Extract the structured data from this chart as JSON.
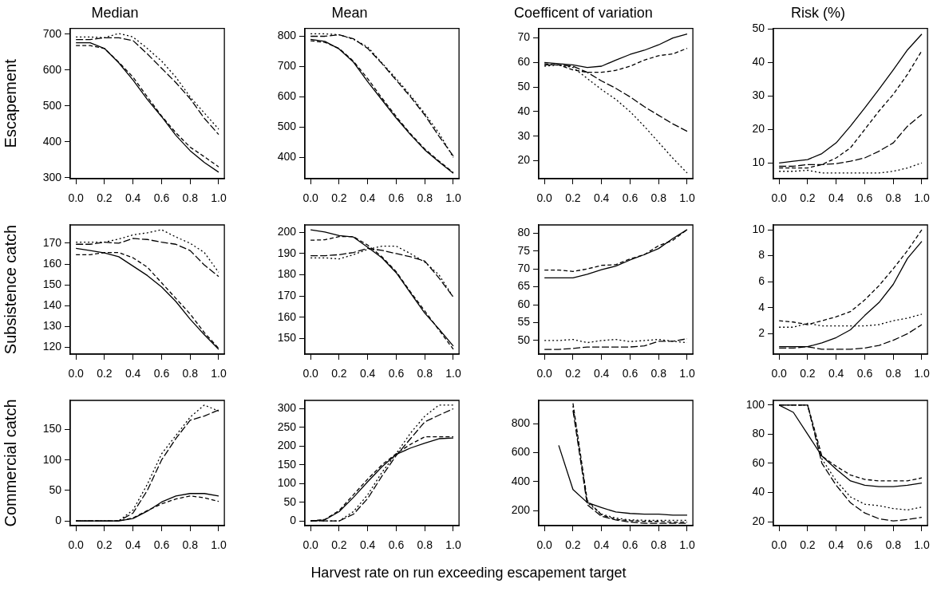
{
  "chart_data": [
    {
      "type": "line",
      "title": "Median",
      "ylabel": "Escapement",
      "x": [
        0,
        0.1,
        0.2,
        0.3,
        0.4,
        0.5,
        0.6,
        0.7,
        0.8,
        0.9,
        1.0
      ],
      "xlim": [
        -0.04,
        1.04
      ],
      "xticks": [
        {
          "value": 0,
          "label": "0.0"
        },
        {
          "value": 0.2,
          "label": "0.2"
        },
        {
          "value": 0.4,
          "label": "0.4"
        },
        {
          "value": 0.6,
          "label": "0.6"
        },
        {
          "value": 0.8,
          "label": "0.8"
        },
        {
          "value": 1,
          "label": "1.0"
        }
      ],
      "ylim": [
        297,
        716
      ],
      "yticks": [
        300,
        400,
        500,
        600,
        700
      ],
      "series": [
        {
          "color": "#000000",
          "line_style": "solid",
          "values": [
            676,
            676,
            660,
            620,
            572,
            518,
            470,
            418,
            375,
            342,
            315
          ]
        },
        {
          "color": "#000000",
          "line_style": "dashed",
          "values": [
            668,
            668,
            660,
            622,
            580,
            525,
            472,
            425,
            385,
            358,
            330
          ]
        },
        {
          "color": "#000000",
          "line_style": "dashed",
          "values": [
            685,
            685,
            690,
            690,
            682,
            645,
            605,
            565,
            520,
            465,
            420
          ]
        },
        {
          "color": "#000000",
          "line_style": "dotted",
          "values": [
            692,
            692,
            690,
            702,
            692,
            660,
            625,
            580,
            525,
            480,
            435
          ]
        }
      ]
    },
    {
      "type": "line",
      "title": "Mean",
      "x": [
        0,
        0.1,
        0.2,
        0.3,
        0.4,
        0.5,
        0.6,
        0.7,
        0.8,
        0.9,
        1.0
      ],
      "xlim": [
        -0.04,
        1.04
      ],
      "xticks": [
        {
          "value": 0,
          "label": "0.0"
        },
        {
          "value": 0.2,
          "label": "0.2"
        },
        {
          "value": 0.4,
          "label": "0.4"
        },
        {
          "value": 0.6,
          "label": "0.6"
        },
        {
          "value": 0.8,
          "label": "0.8"
        },
        {
          "value": 1,
          "label": "1.0"
        }
      ],
      "ylim": [
        330,
        826
      ],
      "yticks": [
        400,
        500,
        600,
        700,
        800
      ],
      "series": [
        {
          "color": "#000000",
          "line_style": "solid",
          "values": [
            790,
            783,
            758,
            715,
            650,
            590,
            530,
            475,
            425,
            385,
            348
          ]
        },
        {
          "color": "#000000",
          "line_style": "dashed",
          "values": [
            785,
            780,
            760,
            718,
            660,
            596,
            535,
            478,
            428,
            388,
            350
          ]
        },
        {
          "color": "#000000",
          "line_style": "dashed",
          "values": [
            800,
            800,
            805,
            792,
            760,
            710,
            655,
            600,
            540,
            470,
            405
          ]
        },
        {
          "color": "#000000",
          "line_style": "dotted",
          "values": [
            808,
            808,
            805,
            790,
            765,
            712,
            660,
            605,
            545,
            480,
            400
          ]
        }
      ]
    },
    {
      "type": "line",
      "title": "Coefficent of variation",
      "x": [
        0,
        0.1,
        0.2,
        0.3,
        0.4,
        0.5,
        0.6,
        0.7,
        0.8,
        0.9,
        1.0
      ],
      "xlim": [
        -0.04,
        1.04
      ],
      "xticks": [
        {
          "value": 0,
          "label": "0.0"
        },
        {
          "value": 0.2,
          "label": "0.2"
        },
        {
          "value": 0.4,
          "label": "0.4"
        },
        {
          "value": 0.6,
          "label": "0.6"
        },
        {
          "value": 0.8,
          "label": "0.8"
        },
        {
          "value": 1,
          "label": "1.0"
        }
      ],
      "ylim": [
        12.7,
        73.9
      ],
      "yticks": [
        20,
        30,
        40,
        50,
        60,
        70
      ],
      "series": [
        {
          "color": "#000000",
          "line_style": "solid",
          "values": [
            60,
            59.5,
            59,
            58,
            58.5,
            61,
            63.3,
            65,
            67.2,
            70,
            71.6
          ]
        },
        {
          "color": "#000000",
          "line_style": "dashed",
          "values": [
            59.5,
            59,
            57,
            56,
            56,
            56.8,
            58.5,
            61,
            62.8,
            63.5,
            65.8
          ]
        },
        {
          "color": "#000000",
          "line_style": "dashed",
          "values": [
            59,
            59,
            58.5,
            56,
            52.5,
            49.5,
            46,
            42,
            38.5,
            35,
            32
          ]
        },
        {
          "color": "#000000",
          "line_style": "dotted",
          "values": [
            58.5,
            59,
            58,
            53.5,
            49,
            45,
            40,
            34,
            27.5,
            21,
            15
          ]
        }
      ]
    },
    {
      "type": "line",
      "title": "Risk (%)",
      "x": [
        0,
        0.1,
        0.2,
        0.3,
        0.4,
        0.5,
        0.6,
        0.7,
        0.8,
        0.9,
        1.0
      ],
      "xlim": [
        -0.04,
        1.04
      ],
      "xticks": [
        {
          "value": 0,
          "label": "0.0"
        },
        {
          "value": 0.2,
          "label": "0.2"
        },
        {
          "value": 0.4,
          "label": "0.4"
        },
        {
          "value": 0.6,
          "label": "0.6"
        },
        {
          "value": 0.8,
          "label": "0.8"
        },
        {
          "value": 1,
          "label": "1.0"
        }
      ],
      "ylim": [
        5.3,
        50.2
      ],
      "yticks": [
        10,
        20,
        30,
        40,
        50
      ],
      "series": [
        {
          "color": "#000000",
          "line_style": "solid",
          "values": [
            10,
            10.5,
            11,
            12.8,
            16,
            21,
            26.4,
            32,
            37.8,
            43.8,
            48.5
          ]
        },
        {
          "color": "#000000",
          "line_style": "dashed",
          "values": [
            8.5,
            8.5,
            8.5,
            9.5,
            11.5,
            14.5,
            20,
            25.5,
            30.5,
            36.5,
            43.5
          ]
        },
        {
          "color": "#000000",
          "line_style": "dashed",
          "values": [
            9,
            9,
            9.5,
            9.5,
            9.8,
            10.5,
            11.5,
            13.5,
            16,
            21,
            24.5
          ]
        },
        {
          "color": "#000000",
          "line_style": "dotted",
          "values": [
            7.5,
            7.5,
            7.8,
            7,
            7,
            7,
            7,
            7,
            7.5,
            8.5,
            10
          ]
        }
      ]
    },
    {
      "type": "line",
      "ylabel": "Subsistence catch",
      "x": [
        0,
        0.1,
        0.2,
        0.3,
        0.4,
        0.5,
        0.6,
        0.7,
        0.8,
        0.9,
        1.0
      ],
      "xlim": [
        -0.04,
        1.04
      ],
      "xticks": [
        {
          "value": 0,
          "label": "0.0"
        },
        {
          "value": 0.2,
          "label": "0.2"
        },
        {
          "value": 0.4,
          "label": "0.4"
        },
        {
          "value": 0.6,
          "label": "0.6"
        },
        {
          "value": 0.8,
          "label": "0.8"
        },
        {
          "value": 1,
          "label": "1.0"
        }
      ],
      "ylim": [
        116.7,
        178.8
      ],
      "yticks": [
        120,
        130,
        140,
        150,
        160,
        170
      ],
      "series": [
        {
          "color": "#000000",
          "line_style": "solid",
          "values": [
            167.5,
            166.5,
            165.3,
            163.5,
            159,
            154.5,
            149,
            142,
            133.5,
            126,
            119
          ]
        },
        {
          "color": "#000000",
          "line_style": "dashed",
          "values": [
            164.5,
            164.5,
            165.5,
            165.5,
            163,
            158.5,
            151,
            143.5,
            136,
            127,
            119.5
          ]
        },
        {
          "color": "#000000",
          "line_style": "dashed",
          "values": [
            169.5,
            169.5,
            170.5,
            170,
            172.3,
            171.8,
            170.5,
            169.5,
            166.5,
            159.5,
            154
          ]
        },
        {
          "color": "#000000",
          "line_style": "dotted",
          "values": [
            170.5,
            170.5,
            170.5,
            172,
            174,
            175,
            176.5,
            173,
            170,
            165.5,
            156
          ]
        }
      ]
    },
    {
      "type": "line",
      "x": [
        0,
        0.1,
        0.2,
        0.3,
        0.4,
        0.5,
        0.6,
        0.7,
        0.8,
        0.9,
        1.0
      ],
      "xlim": [
        -0.04,
        1.04
      ],
      "xticks": [
        {
          "value": 0,
          "label": "0.0"
        },
        {
          "value": 0.2,
          "label": "0.2"
        },
        {
          "value": 0.4,
          "label": "0.4"
        },
        {
          "value": 0.6,
          "label": "0.6"
        },
        {
          "value": 0.8,
          "label": "0.8"
        },
        {
          "value": 1,
          "label": "1.0"
        }
      ],
      "ylim": [
        142.7,
        203.5
      ],
      "yticks": [
        150,
        160,
        170,
        180,
        190,
        200
      ],
      "series": [
        {
          "color": "#000000",
          "line_style": "solid",
          "values": [
            201.2,
            200.2,
            198.5,
            197.8,
            193,
            188,
            181,
            171.5,
            162,
            154.5,
            146.5
          ]
        },
        {
          "color": "#000000",
          "line_style": "dashed",
          "values": [
            196.3,
            196.5,
            198,
            198,
            194,
            188.5,
            181.5,
            172,
            163,
            154,
            145
          ]
        },
        {
          "color": "#000000",
          "line_style": "dashed",
          "values": [
            189,
            189,
            189.5,
            190.5,
            192.5,
            191.5,
            190,
            188.5,
            186.5,
            178.5,
            169.5
          ]
        },
        {
          "color": "#000000",
          "line_style": "dotted",
          "values": [
            188,
            188,
            187.5,
            189.5,
            192,
            193.5,
            193.5,
            190,
            186,
            180,
            169.5
          ]
        }
      ]
    },
    {
      "type": "line",
      "x": [
        0,
        0.1,
        0.2,
        0.3,
        0.4,
        0.5,
        0.6,
        0.7,
        0.8,
        0.9,
        1.0
      ],
      "xlim": [
        -0.04,
        1.04
      ],
      "xticks": [
        {
          "value": 0,
          "label": "0.0"
        },
        {
          "value": 0.2,
          "label": "0.2"
        },
        {
          "value": 0.4,
          "label": "0.4"
        },
        {
          "value": 0.6,
          "label": "0.6"
        },
        {
          "value": 0.8,
          "label": "0.8"
        },
        {
          "value": 1,
          "label": "1.0"
        }
      ],
      "ylim": [
        46.2,
        82.3
      ],
      "yticks": [
        50,
        55,
        60,
        65,
        70,
        75,
        80
      ],
      "series": [
        {
          "color": "#000000",
          "line_style": "solid",
          "values": [
            67.5,
            67.5,
            67.5,
            68.5,
            69.8,
            70.8,
            72.5,
            74,
            75.7,
            78.5,
            81
          ]
        },
        {
          "color": "#000000",
          "line_style": "dashed",
          "values": [
            69.7,
            69.7,
            69.3,
            70,
            71,
            71.2,
            72.8,
            74,
            76.5,
            78,
            81
          ]
        },
        {
          "color": "#000000",
          "line_style": "dashed",
          "values": [
            47.5,
            47.5,
            47.8,
            48.2,
            48.2,
            48.2,
            48.2,
            48.5,
            49.8,
            49.8,
            50.5
          ]
        },
        {
          "color": "#000000",
          "line_style": "dotted",
          "values": [
            50,
            50,
            50.3,
            49.4,
            50,
            50.3,
            49.7,
            50,
            50.3,
            49.8,
            49.4
          ]
        }
      ]
    },
    {
      "type": "line",
      "x": [
        0,
        0.1,
        0.2,
        0.3,
        0.4,
        0.5,
        0.6,
        0.7,
        0.8,
        0.9,
        1.0
      ],
      "xlim": [
        -0.04,
        1.04
      ],
      "xticks": [
        {
          "value": 0,
          "label": "0.0"
        },
        {
          "value": 0.2,
          "label": "0.2"
        },
        {
          "value": 0.4,
          "label": "0.4"
        },
        {
          "value": 0.6,
          "label": "0.6"
        },
        {
          "value": 0.8,
          "label": "0.8"
        },
        {
          "value": 1,
          "label": "1.0"
        }
      ],
      "ylim": [
        0.43,
        10.37
      ],
      "yticks": [
        2,
        4,
        6,
        8,
        10
      ],
      "series": [
        {
          "color": "#000000",
          "line_style": "solid",
          "values": [
            1.0,
            1.0,
            1.0,
            1.3,
            1.7,
            2.3,
            3.4,
            4.4,
            5.8,
            7.8,
            9.1
          ]
        },
        {
          "color": "#000000",
          "line_style": "dashed",
          "values": [
            3.0,
            2.9,
            2.7,
            3.0,
            3.3,
            3.7,
            4.6,
            5.7,
            7.0,
            8.4,
            10.0
          ]
        },
        {
          "color": "#000000",
          "line_style": "dashed",
          "values": [
            0.9,
            0.9,
            1.0,
            0.8,
            0.8,
            0.8,
            0.9,
            1.1,
            1.5,
            2.0,
            2.7
          ]
        },
        {
          "color": "#000000",
          "line_style": "dotted",
          "values": [
            2.5,
            2.5,
            2.8,
            2.6,
            2.6,
            2.6,
            2.6,
            2.7,
            3.0,
            3.2,
            3.5
          ]
        }
      ]
    },
    {
      "type": "line",
      "ylabel": "Commercial catch",
      "x": [
        0,
        0.1,
        0.2,
        0.3,
        0.4,
        0.5,
        0.6,
        0.7,
        0.8,
        0.9,
        1.0
      ],
      "xlim": [
        -0.04,
        1.04
      ],
      "xticks": [
        {
          "value": 0,
          "label": "0.0"
        },
        {
          "value": 0.2,
          "label": "0.2"
        },
        {
          "value": 0.4,
          "label": "0.4"
        },
        {
          "value": 0.6,
          "label": "0.6"
        },
        {
          "value": 0.8,
          "label": "0.8"
        },
        {
          "value": 1,
          "label": "1.0"
        }
      ],
      "ylim": [
        -7.6,
        197.6
      ],
      "yticks": [
        0,
        50,
        100,
        150
      ],
      "series": [
        {
          "color": "#000000",
          "line_style": "solid",
          "values": [
            0,
            0,
            0,
            0,
            4,
            16,
            31,
            41,
            45,
            45,
            41
          ]
        },
        {
          "color": "#000000",
          "line_style": "dashed",
          "values": [
            0,
            0,
            0,
            0,
            5,
            17,
            28,
            36,
            41,
            38,
            32
          ]
        },
        {
          "color": "#000000",
          "line_style": "dashed",
          "values": [
            0,
            0,
            0,
            0,
            13,
            50,
            100,
            135,
            165,
            172,
            182
          ]
        },
        {
          "color": "#000000",
          "line_style": "dotted",
          "values": [
            0,
            0,
            0,
            0,
            18,
            60,
            110,
            140,
            170,
            190,
            180
          ]
        }
      ]
    },
    {
      "type": "line",
      "annotations": [
        "Harvest rate on run exceeding escapement target"
      ],
      "x": [
        0,
        0.1,
        0.2,
        0.3,
        0.4,
        0.5,
        0.6,
        0.7,
        0.8,
        0.9,
        1.0
      ],
      "xlim": [
        -0.04,
        1.04
      ],
      "xticks": [
        {
          "value": 0,
          "label": "0.0"
        },
        {
          "value": 0.2,
          "label": "0.2"
        },
        {
          "value": 0.4,
          "label": "0.4"
        },
        {
          "value": 0.6,
          "label": "0.6"
        },
        {
          "value": 0.8,
          "label": "0.8"
        },
        {
          "value": 1,
          "label": "1.0"
        }
      ],
      "ylim": [
        -12.4,
        322.4
      ],
      "yticks": [
        0,
        50,
        100,
        150,
        200,
        250,
        300
      ],
      "series": [
        {
          "color": "#000000",
          "line_style": "solid",
          "values": [
            0,
            3,
            25,
            63,
            105,
            145,
            178,
            195,
            208,
            220,
            222
          ]
        },
        {
          "color": "#000000",
          "line_style": "dashed",
          "values": [
            0,
            4,
            28,
            70,
            112,
            150,
            180,
            205,
            225,
            225,
            225
          ]
        },
        {
          "color": "#000000",
          "line_style": "dashed",
          "values": [
            0,
            0,
            0,
            18,
            60,
            120,
            175,
            220,
            265,
            283,
            300
          ]
        },
        {
          "color": "#000000",
          "line_style": "dotted",
          "values": [
            0,
            0,
            0,
            25,
            70,
            130,
            180,
            235,
            280,
            310,
            310
          ]
        }
      ]
    },
    {
      "type": "line",
      "xlim": [
        -0.04,
        1.04
      ],
      "xticks": [
        {
          "value": 0,
          "label": "0.0"
        },
        {
          "value": 0.2,
          "label": "0.2"
        },
        {
          "value": 0.4,
          "label": "0.4"
        },
        {
          "value": 0.6,
          "label": "0.6"
        },
        {
          "value": 0.8,
          "label": "0.8"
        },
        {
          "value": 1,
          "label": "1.0"
        }
      ],
      "ylim": [
        96,
        960
      ],
      "yticks": [
        200,
        400,
        600,
        800
      ],
      "series": [
        {
          "color": "#000000",
          "line_style": "solid",
          "x": [
            0.1,
            0.2,
            0.3,
            0.4,
            0.5,
            0.6,
            0.7,
            0.8,
            0.9,
            1.0
          ],
          "values": [
            650,
            345,
            255,
            220,
            190,
            180,
            175,
            175,
            168,
            168
          ]
        },
        {
          "color": "#000000",
          "line_style": "dashed",
          "x": [
            0.2,
            0.3,
            0.4,
            0.5,
            0.6,
            0.7,
            0.8,
            0.9,
            1.0
          ],
          "values": [
            940,
            270,
            170,
            140,
            130,
            125,
            125,
            120,
            120
          ]
        },
        {
          "color": "#000000",
          "line_style": "dashed",
          "x": [
            0.2,
            0.3,
            0.4,
            0.5,
            0.6,
            0.7,
            0.8,
            0.9,
            1.0
          ],
          "values": [
            890,
            240,
            160,
            135,
            120,
            112,
            112,
            112,
            112
          ]
        },
        {
          "color": "#000000",
          "line_style": "dotted",
          "x": [
            0.2,
            0.3,
            0.4,
            0.5,
            0.6,
            0.7,
            0.8,
            0.9,
            1.0
          ],
          "values": [
            920,
            255,
            175,
            148,
            135,
            133,
            133,
            133,
            133
          ]
        }
      ]
    },
    {
      "type": "line",
      "x": [
        0,
        0.1,
        0.2,
        0.3,
        0.4,
        0.5,
        0.6,
        0.7,
        0.8,
        0.9,
        1.0
      ],
      "xlim": [
        -0.04,
        1.04
      ],
      "xticks": [
        {
          "value": 0,
          "label": "0.0"
        },
        {
          "value": 0.2,
          "label": "0.2"
        },
        {
          "value": 0.4,
          "label": "0.4"
        },
        {
          "value": 0.6,
          "label": "0.6"
        },
        {
          "value": 0.8,
          "label": "0.8"
        },
        {
          "value": 1,
          "label": "1.0"
        }
      ],
      "ylim": [
        17.3,
        103.2
      ],
      "yticks": [
        20,
        40,
        60,
        80,
        100
      ],
      "series": [
        {
          "color": "#000000",
          "line_style": "solid",
          "values": [
            100,
            95,
            80,
            65,
            56,
            48,
            45,
            44,
            44,
            45,
            46.5
          ]
        },
        {
          "color": "#000000",
          "line_style": "dashed",
          "values": [
            100,
            100,
            100,
            65,
            58,
            52,
            49,
            48,
            48,
            48,
            50
          ]
        },
        {
          "color": "#000000",
          "line_style": "dashed",
          "values": [
            100,
            100,
            100,
            60,
            45,
            33,
            26,
            22,
            20.5,
            21.5,
            23
          ]
        },
        {
          "color": "#000000",
          "line_style": "dotted",
          "values": [
            100,
            100,
            100,
            63,
            48,
            37,
            32,
            31,
            29,
            28,
            30
          ]
        }
      ]
    }
  ]
}
